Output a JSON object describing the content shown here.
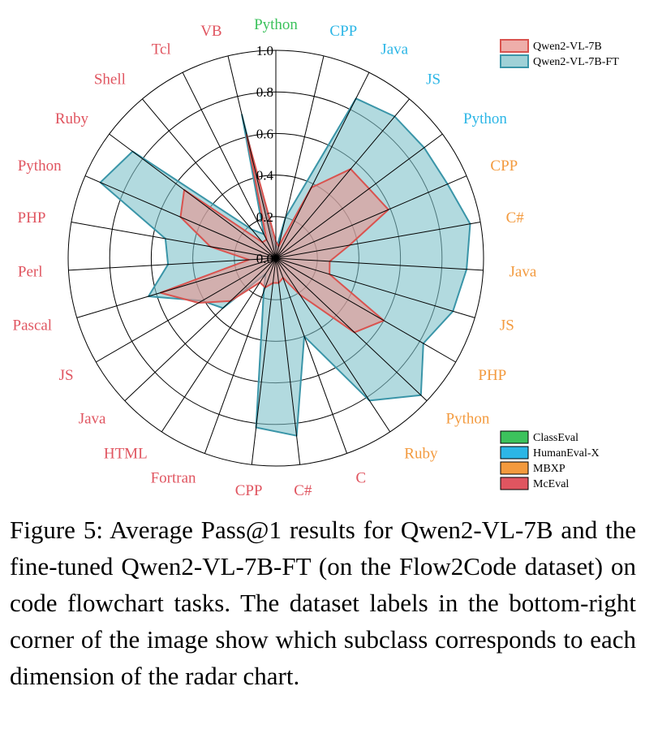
{
  "chart_data": {
    "type": "radar",
    "rlim": [
      0.0,
      1.0
    ],
    "rticks": [
      "0.0",
      "0.2",
      "0.4",
      "0.6",
      "0.8",
      "1.0"
    ],
    "axes": [
      {
        "label": "Python",
        "group": "ClassEval"
      },
      {
        "label": "CPP",
        "group": "HumanEval-X"
      },
      {
        "label": "Java",
        "group": "HumanEval-X"
      },
      {
        "label": "JS",
        "group": "HumanEval-X"
      },
      {
        "label": "Python",
        "group": "HumanEval-X"
      },
      {
        "label": "CPP",
        "group": "MBXP"
      },
      {
        "label": "C#",
        "group": "MBXP"
      },
      {
        "label": "Java",
        "group": "MBXP"
      },
      {
        "label": "JS",
        "group": "MBXP"
      },
      {
        "label": "PHP",
        "group": "MBXP"
      },
      {
        "label": "Python",
        "group": "MBXP"
      },
      {
        "label": "Ruby",
        "group": "MBXP"
      },
      {
        "label": "C",
        "group": "McEval"
      },
      {
        "label": "C#",
        "group": "McEval"
      },
      {
        "label": "CPP",
        "group": "McEval"
      },
      {
        "label": "Fortran",
        "group": "McEval"
      },
      {
        "label": "HTML",
        "group": "McEval"
      },
      {
        "label": "Java",
        "group": "McEval"
      },
      {
        "label": "JS",
        "group": "McEval"
      },
      {
        "label": "Pascal",
        "group": "McEval"
      },
      {
        "label": "Perl",
        "group": "McEval"
      },
      {
        "label": "PHP",
        "group": "McEval"
      },
      {
        "label": "Python",
        "group": "McEval"
      },
      {
        "label": "Ruby",
        "group": "McEval"
      },
      {
        "label": "Shell",
        "group": "McEval"
      },
      {
        "label": "Tcl",
        "group": "McEval"
      },
      {
        "label": "VB",
        "group": "McEval"
      }
    ],
    "series": [
      {
        "name": "Qwen2-VL-7B",
        "fill": "#e8938d",
        "stroke": "#d9534f",
        "values": [
          0.08,
          0.06,
          0.38,
          0.56,
          0.56,
          0.59,
          0.36,
          0.26,
          0.27,
          0.6,
          0.52,
          0.21,
          0.1,
          0.12,
          0.12,
          0.15,
          0.14,
          0.3,
          0.43,
          0.58,
          0.13,
          0.32,
          0.5,
          0.55,
          0.1,
          0.1,
          0.61
        ]
      },
      {
        "name": "Qwen2-VL-7B-FT",
        "fill": "#7fc1c9",
        "stroke": "#3a95a8",
        "values": [
          0.04,
          0.2,
          0.86,
          0.89,
          0.89,
          0.9,
          0.95,
          0.92,
          0.89,
          0.82,
          0.96,
          0.82,
          0.4,
          0.86,
          0.82,
          0.17,
          0.09,
          0.35,
          0.41,
          0.64,
          0.52,
          0.54,
          0.92,
          0.86,
          0.18,
          0.13,
          0.71
        ]
      }
    ],
    "groups": [
      {
        "name": "ClassEval",
        "color": "#3cc25c"
      },
      {
        "name": "HumanEval-X",
        "color": "#2cb6e6"
      },
      {
        "name": "MBXP",
        "color": "#f39a3e"
      },
      {
        "name": "McEval",
        "color": "#e05560"
      }
    ],
    "legend_position": "top-right",
    "groups_legend_position": "bottom-right"
  },
  "caption": "Figure 5:  Average Pass@1 results for Qwen2-VL-7B and the fine-tuned Qwen2-VL-7B-FT (on the Flow2Code dataset) on code flowchart tasks.  The dataset labels in the bottom-right corner of the image show which subclass corresponds to each dimension of the radar chart."
}
